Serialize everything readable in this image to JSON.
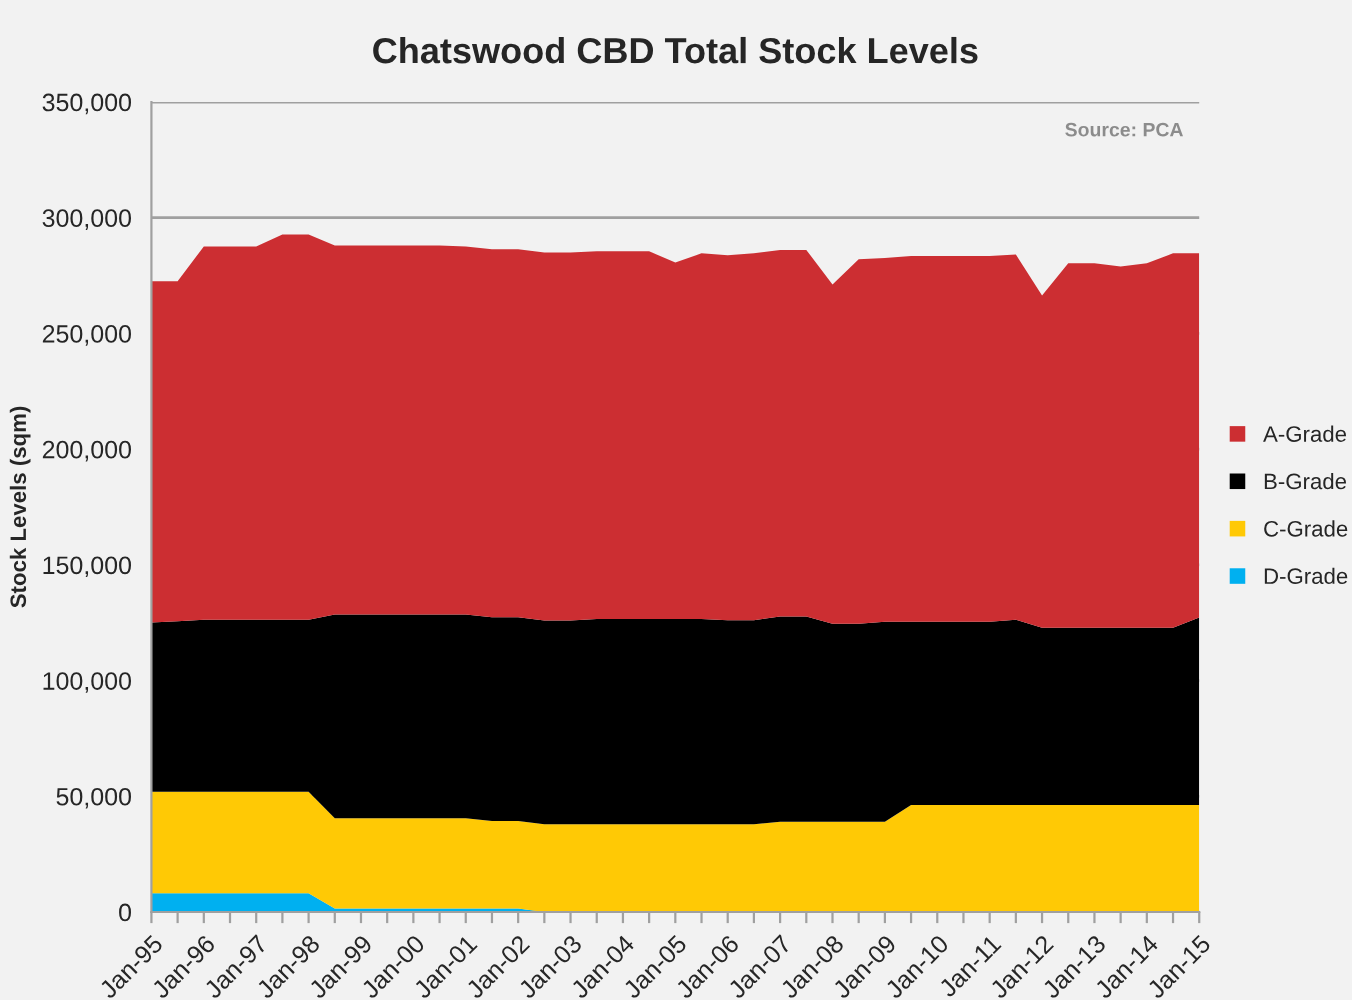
{
  "chart_data": {
    "type": "area",
    "stacked": true,
    "title": "Chatswood CBD Total Stock Levels",
    "ylabel": "Stock Levels (sqm)",
    "categories": [
      "Jan-95",
      null,
      "Jan-96",
      null,
      "Jan-97",
      null,
      "Jan-98",
      null,
      "Jan-99",
      null,
      "Jan-00",
      null,
      "Jan-01",
      null,
      "Jan-02",
      null,
      "Jan-03",
      null,
      "Jan-04",
      null,
      "Jan-05",
      null,
      "Jan-06",
      null,
      "Jan-07",
      null,
      "Jan-08",
      null,
      "Jan-09",
      null,
      "Jan-10",
      null,
      "Jan-11",
      null,
      "Jan-12",
      null,
      "Jan-13",
      null,
      "Jan-14",
      null,
      "Jan-15"
    ],
    "series": [
      {
        "name": "D-Grade",
        "color": "#00b0f0",
        "values": [
          8100,
          8100,
          8100,
          8100,
          8100,
          8100,
          8100,
          1500,
          1500,
          1500,
          1500,
          1500,
          1500,
          1500,
          1500,
          0,
          0,
          0,
          0,
          0,
          0,
          0,
          0,
          0,
          0,
          0,
          0,
          0,
          0,
          0,
          0,
          0,
          0,
          0,
          0,
          0,
          0,
          0,
          0,
          0,
          0
        ]
      },
      {
        "name": "C-Grade",
        "color": "#ffc905",
        "values": [
          43900,
          43900,
          43900,
          43900,
          43900,
          43900,
          43900,
          39000,
          39000,
          39000,
          39000,
          39000,
          39000,
          37800,
          37800,
          37900,
          37900,
          37900,
          37900,
          37900,
          37900,
          37900,
          37900,
          37900,
          39000,
          39000,
          39000,
          39000,
          39000,
          46200,
          46200,
          46200,
          46200,
          46200,
          46200,
          46200,
          46200,
          46200,
          46200,
          46200,
          46200
        ]
      },
      {
        "name": "B-Grade",
        "color": "#000000",
        "values": [
          73100,
          73600,
          74300,
          74300,
          74300,
          74300,
          74300,
          88100,
          88100,
          88100,
          88100,
          88100,
          88100,
          88100,
          88100,
          88100,
          88100,
          88700,
          88700,
          88700,
          88700,
          88700,
          88200,
          88200,
          88700,
          88700,
          85600,
          85600,
          86400,
          79200,
          79200,
          79200,
          79200,
          80100,
          76600,
          76600,
          76600,
          76600,
          76600,
          76600,
          81000
        ]
      },
      {
        "name": "A-Grade",
        "color": "#cc2e32",
        "values": [
          147400,
          146900,
          161300,
          161300,
          161300,
          166500,
          166500,
          159400,
          159400,
          159400,
          159400,
          159400,
          159000,
          159000,
          159000,
          159000,
          159000,
          158900,
          158900,
          158900,
          154000,
          158000,
          157700,
          158500,
          158400,
          158400,
          146500,
          157400,
          157200,
          158100,
          158100,
          158100,
          158100,
          157800,
          143600,
          157500,
          157500,
          156100,
          157500,
          161800,
          157400
        ]
      }
    ],
    "ylim": [
      0,
      350000
    ],
    "yticks": [
      {
        "value": 0,
        "label": "0"
      },
      {
        "value": 50000,
        "label": "50,000"
      },
      {
        "value": 100000,
        "label": "100,000"
      },
      {
        "value": 150000,
        "label": "150,000"
      },
      {
        "value": 200000,
        "label": "200,000"
      },
      {
        "value": 250000,
        "label": "250,000"
      },
      {
        "value": 300000,
        "label": "300,000"
      },
      {
        "value": 350000,
        "label": "350,000"
      }
    ],
    "grid": "y",
    "legend": "right",
    "annotations": [
      "Source: PCA"
    ]
  }
}
